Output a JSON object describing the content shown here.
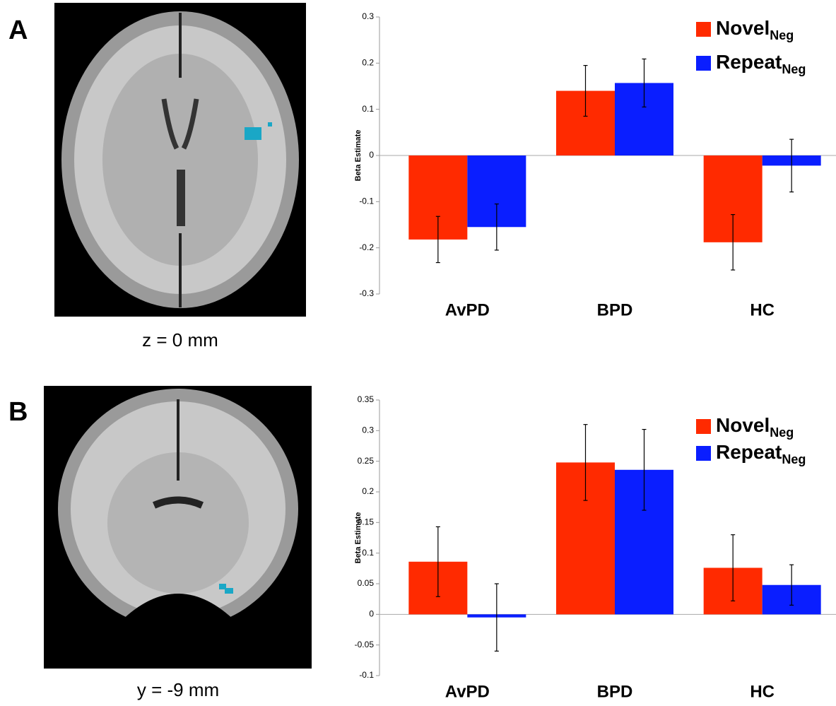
{
  "chart_data": [
    {
      "type": "bar",
      "panel_label": "A",
      "image_caption": "z = 0 mm",
      "y_label": "Beta Estimate",
      "categories": [
        "AvPD",
        "BPD",
        "HC"
      ],
      "series": [
        {
          "name": "Novel",
          "name_sub": "Neg",
          "color": "#ff2a00",
          "values": [
            -0.182,
            0.14,
            -0.188
          ],
          "errors": [
            0.05,
            0.055,
            0.06
          ]
        },
        {
          "name": "Repeat",
          "name_sub": "Neg",
          "color": "#0a1eff",
          "values": [
            -0.155,
            0.157,
            -0.022
          ],
          "errors": [
            0.05,
            0.052,
            0.057
          ]
        }
      ],
      "ylim": [
        -0.3,
        0.3
      ],
      "yticks": [
        -0.3,
        -0.2,
        -0.1,
        0,
        0.1,
        0.2,
        0.3
      ]
    },
    {
      "type": "bar",
      "panel_label": "B",
      "image_caption": "y = -9 mm",
      "y_label": "Beta Estimate",
      "categories": [
        "AvPD",
        "BPD",
        "HC"
      ],
      "series": [
        {
          "name": "Novel",
          "name_sub": "Neg",
          "color": "#ff2a00",
          "values": [
            0.086,
            0.248,
            0.076
          ],
          "errors": [
            0.057,
            0.062,
            0.054
          ]
        },
        {
          "name": "Repeat",
          "name_sub": "Neg",
          "color": "#0a1eff",
          "values": [
            -0.005,
            0.236,
            0.048
          ],
          "errors": [
            0.055,
            0.066,
            0.033
          ]
        }
      ],
      "ylim": [
        -0.1,
        0.35
      ],
      "yticks": [
        -0.1,
        -0.05,
        0,
        0.05,
        0.1,
        0.15,
        0.2,
        0.25,
        0.3,
        0.35
      ]
    }
  ]
}
